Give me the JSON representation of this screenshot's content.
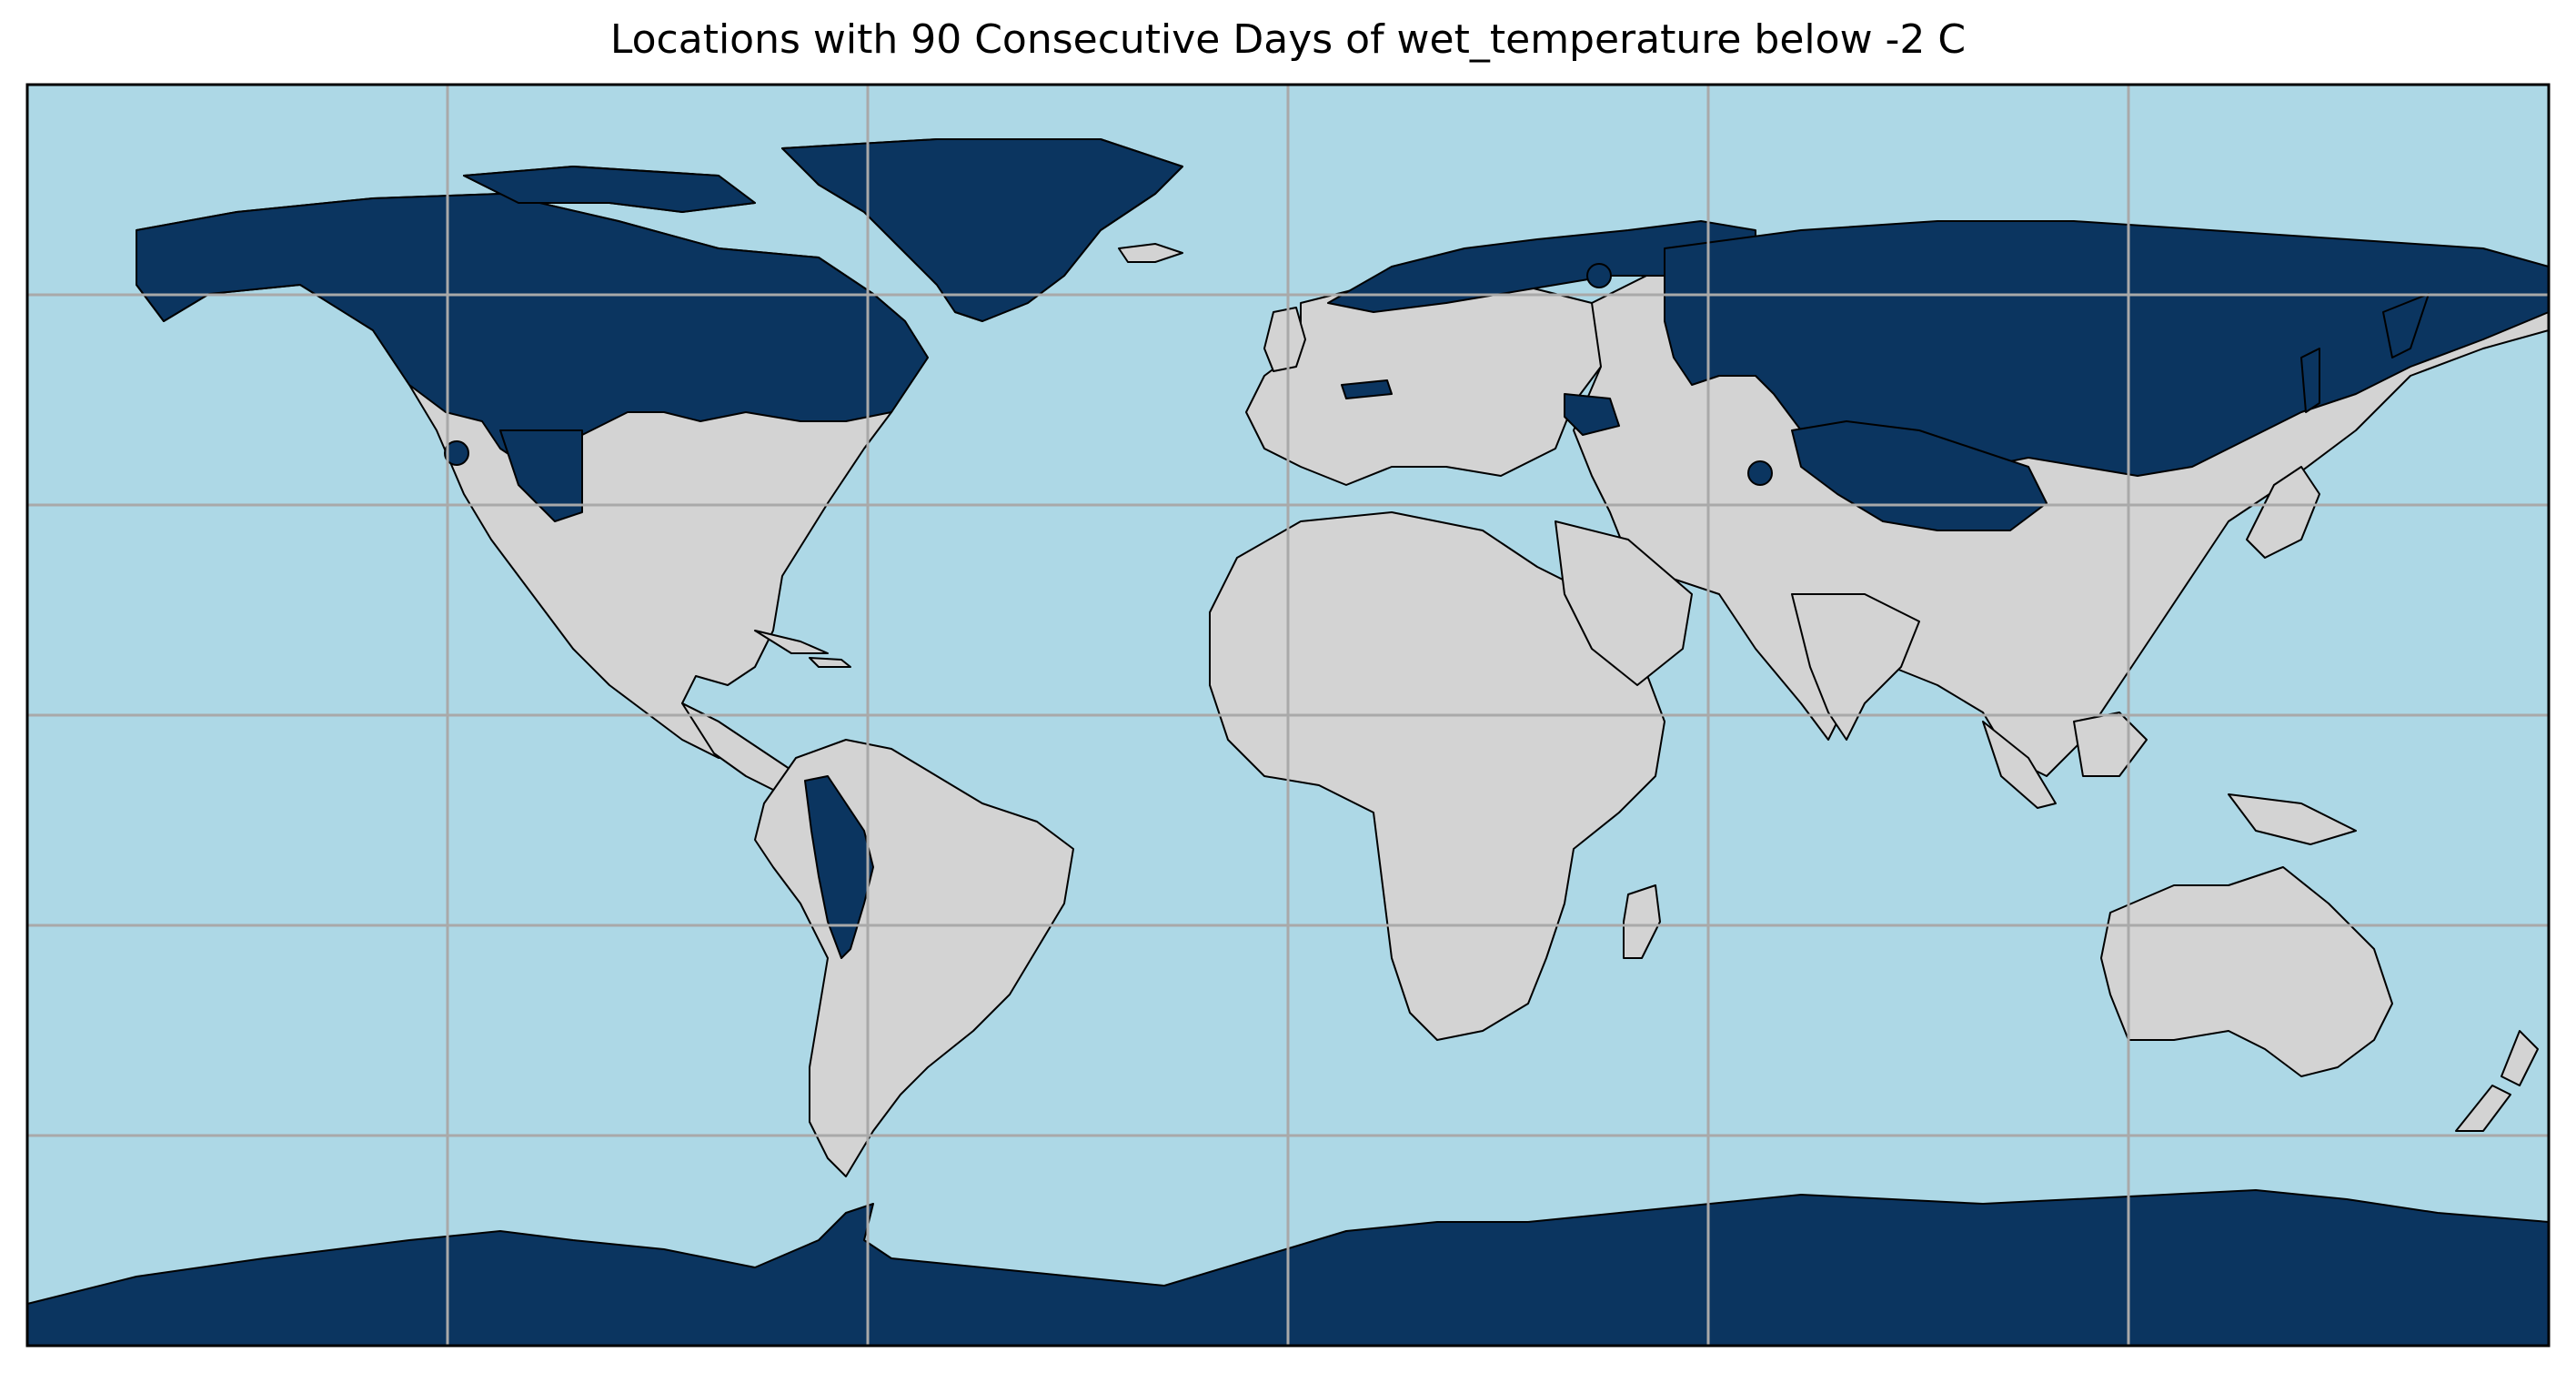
{
  "title": "Locations with 90 Consecutive Days of wet_temperature below -2 C",
  "colors": {
    "ocean": "#add8e6",
    "land": "#d3d3d3",
    "highlight": "#0b3560",
    "grid": "#a9a9a9",
    "coastline": "#000000"
  },
  "map": {
    "projection": "PlateCarree",
    "lon_range": [
      -180,
      180
    ],
    "lat_range": [
      -90,
      90
    ],
    "gridlines": true,
    "grid_lon_step": 60,
    "grid_lat_step": 30
  }
}
